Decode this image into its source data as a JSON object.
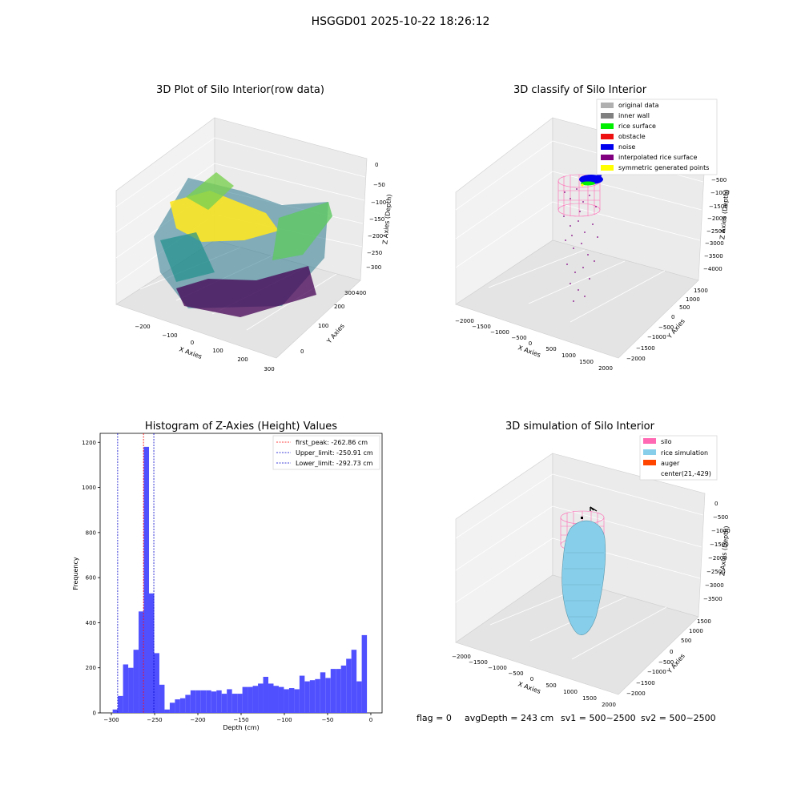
{
  "suptitle": "HSGGD01 2025-10-22 18:26:12",
  "colors": {
    "original": "#b0b0b0",
    "inner_wall": "#808080",
    "rice_surface": "#00ee00",
    "obstacle": "#ee1111",
    "noise": "#0000ee",
    "interp": "#800080",
    "symmetric": "#ffff00",
    "silo": "#ff69b4",
    "rice_sim": "#87ceeb",
    "auger": "#ff4500",
    "hist_bar": "#5050ff",
    "peak_line": "#ff0000",
    "limit_line": "#0000cc"
  },
  "chart_data": [
    {
      "type": "scatter",
      "title": "3D Plot of Silo Interior(row data)",
      "xlabel": "X Axies",
      "ylabel": "Y Axies",
      "zlabel": "Z Axies (Depth)",
      "xticks": [
        "−200",
        "−100",
        "0",
        "100",
        "200",
        "300"
      ],
      "yticks": [
        "0",
        "100",
        "200",
        "300",
        "400"
      ],
      "zticks": [
        "0",
        "−50",
        "−100",
        "−150",
        "−200",
        "−250",
        "−300"
      ],
      "xlim": [
        -250,
        300
      ],
      "ylim": [
        -50,
        450
      ],
      "zlim": [
        -320,
        10
      ],
      "colormap": "viridis"
    },
    {
      "type": "scatter",
      "title": "3D classify of Silo Interior",
      "xlabel": "X Axies",
      "ylabel": "Y Axies",
      "zlabel": "Z Axies (Depth)",
      "xticks": [
        "−2000",
        "−1500",
        "−1000",
        "−500",
        "0",
        "500",
        "1000",
        "1500",
        "2000"
      ],
      "yticks": [
        "−2000",
        "−1500",
        "−1000",
        "−500",
        "0",
        "500",
        "1000",
        "1500"
      ],
      "zticks": [
        "0",
        "−500",
        "−1000",
        "−1500",
        "−2000",
        "−2500",
        "−3000",
        "−3500",
        "−4000"
      ],
      "xlim": [
        -2100,
        2100
      ],
      "ylim": [
        -2100,
        1700
      ],
      "zlim": [
        -4000,
        0
      ],
      "legend_position": "top-right",
      "legend": [
        {
          "label": "original data",
          "color_key": "original"
        },
        {
          "label": "inner wall",
          "color_key": "inner_wall"
        },
        {
          "label": "rice surface",
          "color_key": "rice_surface"
        },
        {
          "label": "obstacle",
          "color_key": "obstacle"
        },
        {
          "label": "noise",
          "color_key": "noise"
        },
        {
          "label": "interpolated rice surface",
          "color_key": "interp"
        },
        {
          "label": "symmetric generated points",
          "color_key": "symmetric"
        }
      ]
    },
    {
      "type": "bar",
      "title": "Histogram of Z-Axies (Height) Values",
      "xlabel": "Depth (cm)",
      "ylabel": "Frequency",
      "xlim": [
        -313,
        13
      ],
      "ylim": [
        0,
        1240
      ],
      "xticks": [
        -300,
        -250,
        -200,
        -150,
        -100,
        -50,
        0
      ],
      "xtick_labels": [
        "−300",
        "−250",
        "−200",
        "−150",
        "−100",
        "−50",
        "0"
      ],
      "yticks": [
        0,
        200,
        400,
        600,
        800,
        1000,
        1200
      ],
      "bin_start": -298.5,
      "bin_width": 6.0,
      "values": [
        15,
        75,
        215,
        200,
        280,
        450,
        1180,
        530,
        265,
        125,
        15,
        45,
        60,
        65,
        80,
        100,
        100,
        100,
        100,
        95,
        100,
        85,
        105,
        85,
        85,
        115,
        115,
        120,
        130,
        160,
        130,
        120,
        115,
        105,
        110,
        105,
        165,
        140,
        145,
        150,
        180,
        155,
        195,
        195,
        210,
        240,
        280,
        140,
        345
      ],
      "lines": [
        {
          "x": -262.86,
          "color_key": "peak_line",
          "label": "first_peak: -262.86 cm"
        },
        {
          "x": -250.91,
          "color_key": "limit_line",
          "label": "Upper_limit: -250.91 cm"
        },
        {
          "x": -292.73,
          "color_key": "limit_line",
          "label": "Lower_limit: -292.73 cm"
        }
      ],
      "legend_position": "top-right"
    },
    {
      "type": "scatter",
      "title": "3D simulation of Silo Interior",
      "xlabel": "X Axies",
      "ylabel": "Y Axies",
      "zlabel": "Z Axies (Depth)",
      "xticks": [
        "−2000",
        "−1500",
        "−1000",
        "−500",
        "0",
        "500",
        "1000",
        "1500",
        "2000"
      ],
      "yticks": [
        "−2000",
        "−1500",
        "−1000",
        "−500",
        "0",
        "500",
        "1000",
        "1500"
      ],
      "zticks": [
        "0",
        "−500",
        "−1000",
        "−1500",
        "−2000",
        "−2500",
        "−3000",
        "−3500"
      ],
      "xlim": [
        -2100,
        2100
      ],
      "ylim": [
        -2100,
        1700
      ],
      "zlim": [
        -3800,
        0
      ],
      "legend_position": "top-right",
      "legend": [
        {
          "label": "silo",
          "color_key": "silo"
        },
        {
          "label": "rice simulation",
          "color_key": "rice_sim"
        },
        {
          "label": "auger",
          "color_key": "auger"
        },
        {
          "label": "center(21,-429)",
          "color_key": null
        }
      ]
    }
  ],
  "footer": {
    "flag": "flag = 0",
    "avg_depth": "avgDepth = 243 cm",
    "sv1": "sv1 = 500~2500",
    "sv2": "sv2 = 500~2500"
  }
}
